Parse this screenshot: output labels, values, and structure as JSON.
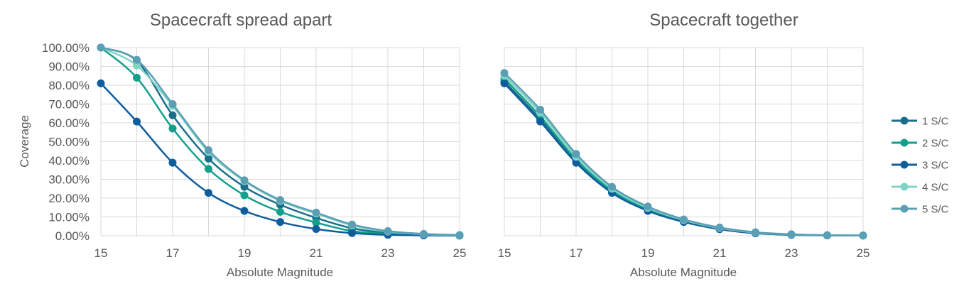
{
  "chart_data": [
    {
      "type": "line",
      "title": "Spacecraft spread apart",
      "xlabel": "Absolute Magnitude",
      "ylabel": "Coverage",
      "x": [
        15,
        16,
        17,
        18,
        19,
        20,
        21,
        22,
        23,
        24,
        25
      ],
      "xlim": [
        15,
        25
      ],
      "xticks": [
        "15",
        "17",
        "19",
        "21",
        "23",
        "25"
      ],
      "ylim": [
        0,
        1
      ],
      "yticks": [
        "0.00%",
        "10.00%",
        "20.00%",
        "30.00%",
        "40.00%",
        "50.00%",
        "60.00%",
        "70.00%",
        "80.00%",
        "90.00%",
        "100.00%"
      ],
      "grid": true,
      "series": [
        {
          "name": "1 S/C",
          "color": "#1a6e8c",
          "values": [
            1.0,
            0.93,
            0.64,
            0.41,
            0.26,
            0.165,
            0.095,
            0.04,
            0.015,
            0.005,
            0.002
          ]
        },
        {
          "name": "2 S/C",
          "color": "#12a08c",
          "values": [
            1.0,
            0.84,
            0.57,
            0.355,
            0.215,
            0.127,
            0.07,
            0.025,
            0.01,
            0.004,
            0.001
          ]
        },
        {
          "name": "3 S/C",
          "color": "#0e5e9e",
          "values": [
            0.81,
            0.607,
            0.388,
            0.228,
            0.132,
            0.073,
            0.036,
            0.014,
            0.005,
            0.002,
            0.001
          ]
        },
        {
          "name": "4 S/C",
          "color": "#7fd4c4",
          "values": [
            1.0,
            0.905,
            0.69,
            0.445,
            0.29,
            0.185,
            0.118,
            0.055,
            0.022,
            0.008,
            0.003
          ]
        },
        {
          "name": "5 S/C",
          "color": "#5b9fb5",
          "values": [
            1.0,
            0.935,
            0.7,
            0.455,
            0.295,
            0.19,
            0.123,
            0.06,
            0.025,
            0.01,
            0.004
          ]
        }
      ]
    },
    {
      "type": "line",
      "title": "Spacecraft together",
      "xlabel": "Absolute Magnitude",
      "ylabel": "",
      "x": [
        15,
        16,
        17,
        18,
        19,
        20,
        21,
        22,
        23,
        24,
        25
      ],
      "xlim": [
        15,
        25
      ],
      "xticks": [
        "15",
        "17",
        "19",
        "21",
        "23",
        "25"
      ],
      "ylim": [
        0,
        1
      ],
      "grid": true,
      "legend": "right",
      "series": [
        {
          "name": "1 S/C",
          "color": "#1a6e8c",
          "values": [
            0.82,
            0.62,
            0.395,
            0.235,
            0.135,
            0.076,
            0.036,
            0.014,
            0.005,
            0.002,
            0.001
          ]
        },
        {
          "name": "2 S/C",
          "color": "#12a08c",
          "values": [
            0.835,
            0.635,
            0.405,
            0.24,
            0.14,
            0.079,
            0.038,
            0.015,
            0.006,
            0.002,
            0.001
          ]
        },
        {
          "name": "3 S/C",
          "color": "#0e5e9e",
          "values": [
            0.81,
            0.607,
            0.388,
            0.228,
            0.132,
            0.073,
            0.035,
            0.013,
            0.005,
            0.002,
            0.001
          ]
        },
        {
          "name": "4 S/C",
          "color": "#7fd4c4",
          "values": [
            0.85,
            0.655,
            0.42,
            0.25,
            0.148,
            0.083,
            0.041,
            0.017,
            0.007,
            0.003,
            0.001
          ]
        },
        {
          "name": "5 S/C",
          "color": "#5b9fb5",
          "values": [
            0.865,
            0.67,
            0.435,
            0.26,
            0.155,
            0.087,
            0.044,
            0.019,
            0.008,
            0.003,
            0.002
          ]
        }
      ]
    }
  ],
  "legend": {
    "entries": [
      {
        "label": "1 S/C",
        "color": "#1a6e8c"
      },
      {
        "label": "2 S/C",
        "color": "#12a08c"
      },
      {
        "label": "3 S/C",
        "color": "#0e5e9e"
      },
      {
        "label": "4 S/C",
        "color": "#7fd4c4"
      },
      {
        "label": "5 S/C",
        "color": "#5b9fb5"
      }
    ]
  }
}
